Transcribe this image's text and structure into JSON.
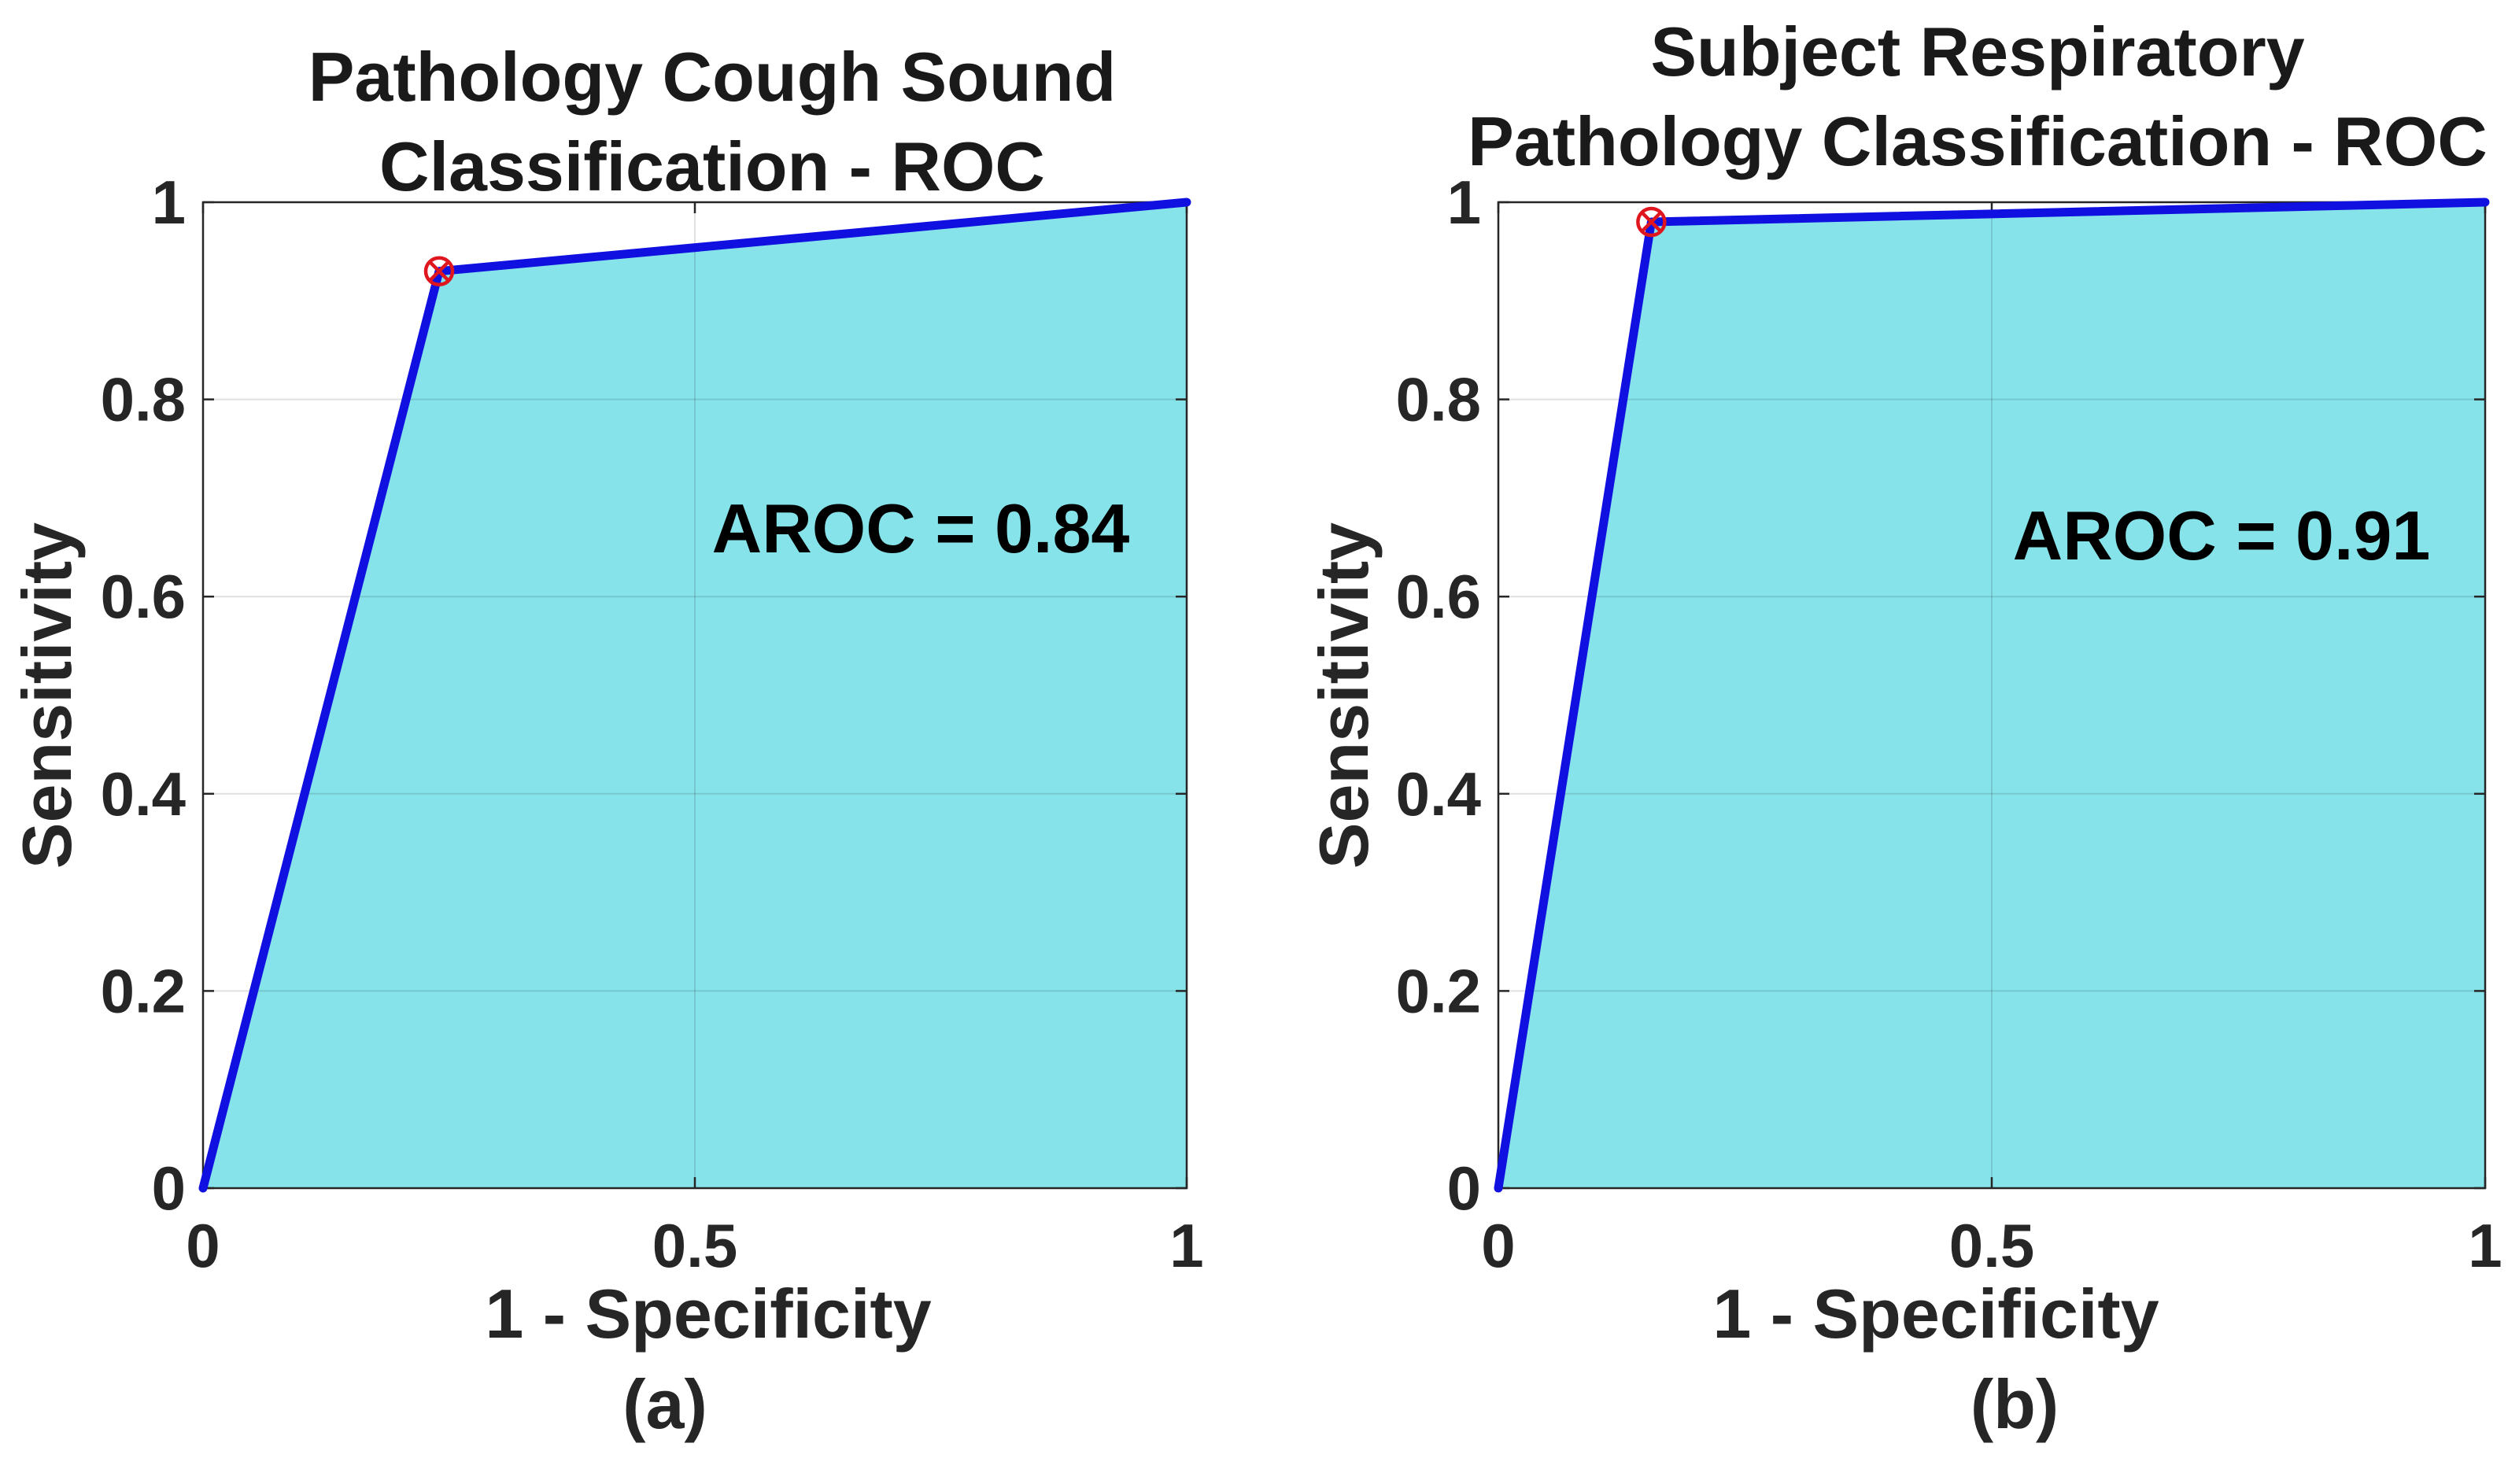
{
  "chart_data": [
    {
      "type": "area",
      "panel_label": "(a)",
      "title": [
        "Pathology Cough Sound",
        "Classification - ROC"
      ],
      "xlabel": "1 - Specificity",
      "ylabel": "Sensitivity",
      "xlim": [
        0,
        1
      ],
      "ylim": [
        0,
        1
      ],
      "grid": true,
      "x_ticks": [
        0,
        0.5,
        1
      ],
      "x_tick_labels": [
        "0",
        "0.5",
        "1"
      ],
      "y_ticks": [
        0,
        0.2,
        0.4,
        0.6,
        0.8,
        1
      ],
      "y_tick_labels": [
        "0",
        "0.2",
        "0.4",
        "0.6",
        "0.8",
        "1"
      ],
      "series": [
        {
          "name": "ROC",
          "x": [
            0,
            0.24,
            1
          ],
          "y": [
            0,
            0.93,
            1
          ]
        }
      ],
      "operating_point": {
        "x": 0.24,
        "y": 0.93
      },
      "annotation": "AROC = 0.84",
      "colors": {
        "line": "#1010e0",
        "fill": "#86e3ea",
        "marker": "#e0161f"
      }
    },
    {
      "type": "area",
      "panel_label": "(b)",
      "title": [
        "Subject Respiratory",
        "Pathology Classification - ROC"
      ],
      "xlabel": "1 - Specificity",
      "ylabel": "Sensitivity",
      "xlim": [
        0,
        1
      ],
      "ylim": [
        0,
        1
      ],
      "grid": true,
      "x_ticks": [
        0,
        0.5,
        1
      ],
      "x_tick_labels": [
        "0",
        "0.5",
        "1"
      ],
      "y_ticks": [
        0,
        0.2,
        0.4,
        0.6,
        0.8,
        1
      ],
      "y_tick_labels": [
        "0",
        "0.2",
        "0.4",
        "0.6",
        "0.8",
        "1"
      ],
      "series": [
        {
          "name": "ROC",
          "x": [
            0,
            0.155,
            1
          ],
          "y": [
            0,
            0.98,
            1
          ]
        }
      ],
      "operating_point": {
        "x": 0.155,
        "y": 0.98
      },
      "annotation": "AROC = 0.91",
      "colors": {
        "line": "#1010e0",
        "fill": "#86e3ea",
        "marker": "#e0161f"
      }
    }
  ]
}
